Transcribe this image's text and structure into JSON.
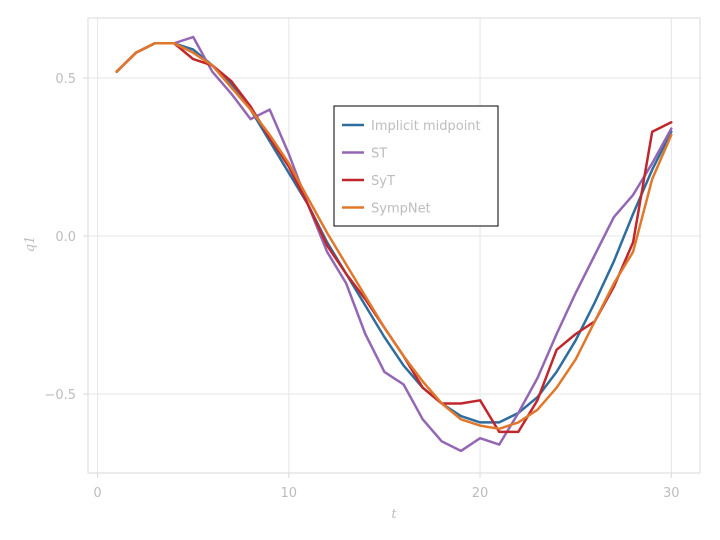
{
  "chart_data": {
    "type": "line",
    "xlabel": "t",
    "ylabel": "q1",
    "xlim": [
      -0.5,
      31.5
    ],
    "ylim": [
      -0.75,
      0.69
    ],
    "xticks": [
      0,
      10,
      20,
      30
    ],
    "xtick_labels": [
      "0",
      "10",
      "20",
      "30"
    ],
    "yticks": [
      -0.5,
      0.0,
      0.5
    ],
    "ytick_labels": [
      "−0.5",
      "0.0",
      "0.5"
    ],
    "grid": true,
    "legend_position": "center",
    "x": [
      1,
      2,
      3,
      4,
      5,
      6,
      7,
      8,
      9,
      10,
      11,
      12,
      13,
      14,
      15,
      16,
      17,
      18,
      19,
      20,
      21,
      22,
      23,
      24,
      25,
      26,
      27,
      28,
      29,
      30
    ],
    "series": [
      {
        "name": "Implicit midpoint",
        "color": "#2e6d9e",
        "values": [
          0.52,
          0.58,
          0.61,
          0.61,
          0.59,
          0.54,
          0.48,
          0.4,
          0.3,
          0.2,
          0.1,
          -0.02,
          -0.12,
          -0.22,
          -0.32,
          -0.41,
          -0.48,
          -0.53,
          -0.57,
          -0.59,
          -0.59,
          -0.56,
          -0.51,
          -0.43,
          -0.33,
          -0.21,
          -0.08,
          0.07,
          0.21,
          0.33
        ]
      },
      {
        "name": "ST",
        "color": "#9467b4",
        "values": [
          0.52,
          0.58,
          0.61,
          0.61,
          0.63,
          0.52,
          0.45,
          0.37,
          0.4,
          0.26,
          0.1,
          -0.05,
          -0.15,
          -0.31,
          -0.43,
          -0.47,
          -0.58,
          -0.65,
          -0.68,
          -0.64,
          -0.66,
          -0.56,
          -0.45,
          -0.31,
          -0.18,
          -0.06,
          0.06,
          0.13,
          0.23,
          0.34
        ]
      },
      {
        "name": "SyT",
        "color": "#c0272d",
        "values": [
          0.52,
          0.58,
          0.61,
          0.61,
          0.56,
          0.54,
          0.49,
          0.41,
          0.31,
          0.22,
          0.1,
          -0.03,
          -0.12,
          -0.2,
          -0.29,
          -0.38,
          -0.48,
          -0.53,
          -0.53,
          -0.52,
          -0.62,
          -0.62,
          -0.52,
          -0.36,
          -0.31,
          -0.27,
          -0.16,
          -0.02,
          0.33,
          0.36
        ]
      },
      {
        "name": "SympNet",
        "color": "#e0782b",
        "values": [
          0.52,
          0.58,
          0.61,
          0.61,
          0.58,
          0.54,
          0.47,
          0.4,
          0.32,
          0.23,
          0.12,
          0.01,
          -0.09,
          -0.19,
          -0.29,
          -0.38,
          -0.46,
          -0.53,
          -0.58,
          -0.6,
          -0.61,
          -0.59,
          -0.55,
          -0.48,
          -0.39,
          -0.27,
          -0.15,
          -0.05,
          0.18,
          0.32
        ]
      }
    ]
  }
}
